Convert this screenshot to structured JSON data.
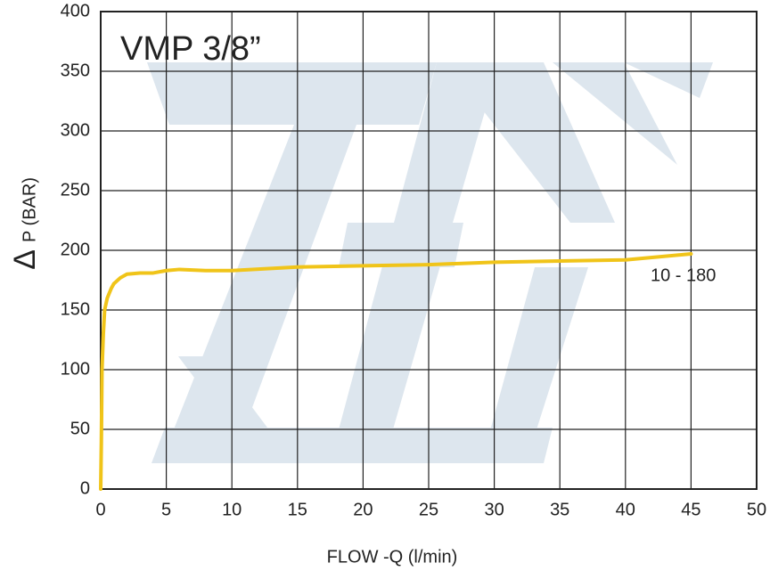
{
  "chart_data": {
    "type": "line",
    "title": "VMP 3/8”",
    "x_label": "FLOW -Q  (l/min)",
    "y_label_symbol": "Δ",
    "y_label": "P (BAR)",
    "annotation": "10 - 180",
    "x": [
      0,
      0.05,
      0.1,
      0.2,
      0.3,
      0.5,
      0.8,
      1,
      1.5,
      2,
      3,
      4,
      5,
      6,
      8,
      10,
      15,
      20,
      25,
      30,
      35,
      40,
      45
    ],
    "values": [
      0,
      40,
      100,
      130,
      150,
      160,
      168,
      172,
      177,
      180,
      181,
      181,
      183,
      184,
      183,
      183,
      186,
      187,
      188,
      190,
      191,
      192,
      197
    ],
    "color": "#f0c419",
    "xlim": [
      0,
      50
    ],
    "xticks": [
      0,
      5,
      10,
      15,
      20,
      25,
      30,
      35,
      40,
      45,
      50
    ],
    "ylim": [
      0,
      400
    ],
    "yticks": [
      0,
      50,
      100,
      150,
      200,
      250,
      300,
      350,
      400
    ],
    "grid": true
  }
}
